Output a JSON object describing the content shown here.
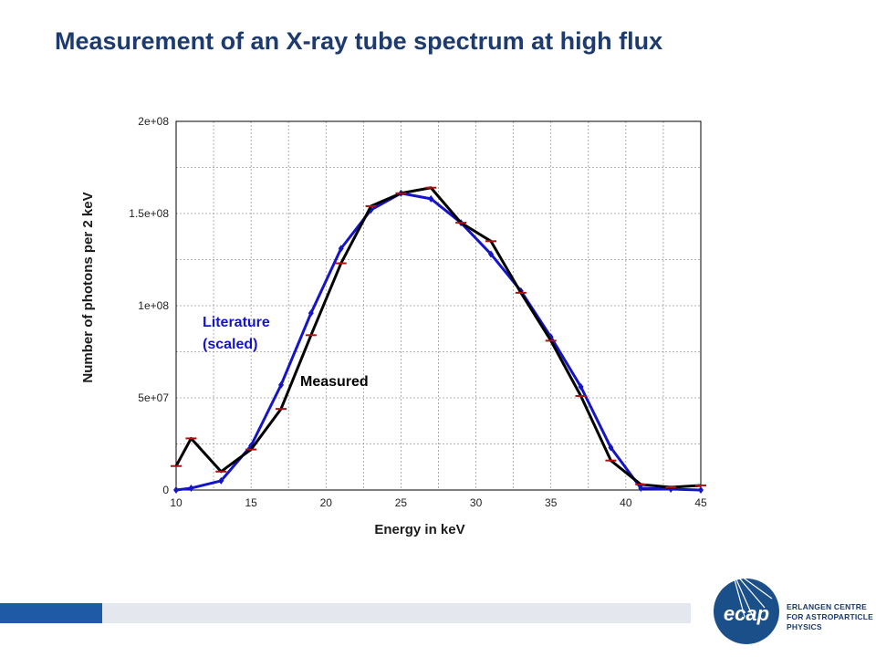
{
  "slide": {
    "title": "Measurement of an X-ray tube spectrum at high flux"
  },
  "colors": {
    "title": "#1d3b6e",
    "literature": "#1414c8",
    "measured": "#000000",
    "measured_marker": "#b01010",
    "footer_dark": "#1f5aa6",
    "footer_light": "#e4e8ee",
    "logo": "#1b4f8a"
  },
  "chart_data": {
    "type": "line",
    "xlabel": "Energy in keV",
    "ylabel": "Number of photons per 2 keV",
    "xlim": [
      10,
      45
    ],
    "ylim": [
      0,
      200000000
    ],
    "xticks": [
      10,
      15,
      20,
      25,
      30,
      35,
      40,
      45
    ],
    "yticks": [
      0,
      50000000,
      100000000,
      150000000,
      200000000
    ],
    "yticklabels": [
      "0",
      "5e+07",
      "1e+08",
      "1.5e+08",
      "2e+08"
    ],
    "grid_x": [
      10,
      12.5,
      15,
      17.5,
      20,
      22.5,
      25,
      27.5,
      30,
      32.5,
      35,
      37.5,
      40,
      42.5,
      45
    ],
    "grid_y": [
      0,
      25000000,
      50000000,
      75000000,
      100000000,
      125000000,
      150000000,
      175000000,
      200000000
    ],
    "grid": true,
    "series": [
      {
        "name": "Literature (scaled)",
        "label_lines": [
          "Literature",
          "(scaled)"
        ],
        "color": "#1414c8",
        "x": [
          10,
          11,
          13,
          15,
          17,
          19,
          21,
          23,
          25,
          27,
          29,
          31,
          33,
          35,
          37,
          39,
          41,
          43,
          45
        ],
        "y": [
          0,
          1000000,
          5000000,
          24000000,
          57000000,
          96000000,
          131000000,
          152000000,
          161000000,
          158000000,
          145000000,
          128000000,
          108000000,
          83000000,
          56000000,
          23000000,
          1000000,
          500000,
          0
        ]
      },
      {
        "name": "Measured",
        "label_lines": [
          "Measured"
        ],
        "color": "#000000",
        "x": [
          10,
          11,
          13,
          15,
          17,
          19,
          21,
          23,
          25,
          27,
          29,
          31,
          33,
          35,
          37,
          39,
          41,
          43,
          45
        ],
        "y": [
          13000000,
          28000000,
          10000000,
          22000000,
          44000000,
          84000000,
          123000000,
          154000000,
          161000000,
          164000000,
          145000000,
          135000000,
          107000000,
          81000000,
          51000000,
          16000000,
          3000000,
          1500000,
          2500000
        ]
      }
    ]
  },
  "logo": {
    "mark": "ecap",
    "lines": [
      "ERLANGEN CENTRE",
      "FOR ASTROPARTICLE",
      "PHYSICS"
    ]
  }
}
